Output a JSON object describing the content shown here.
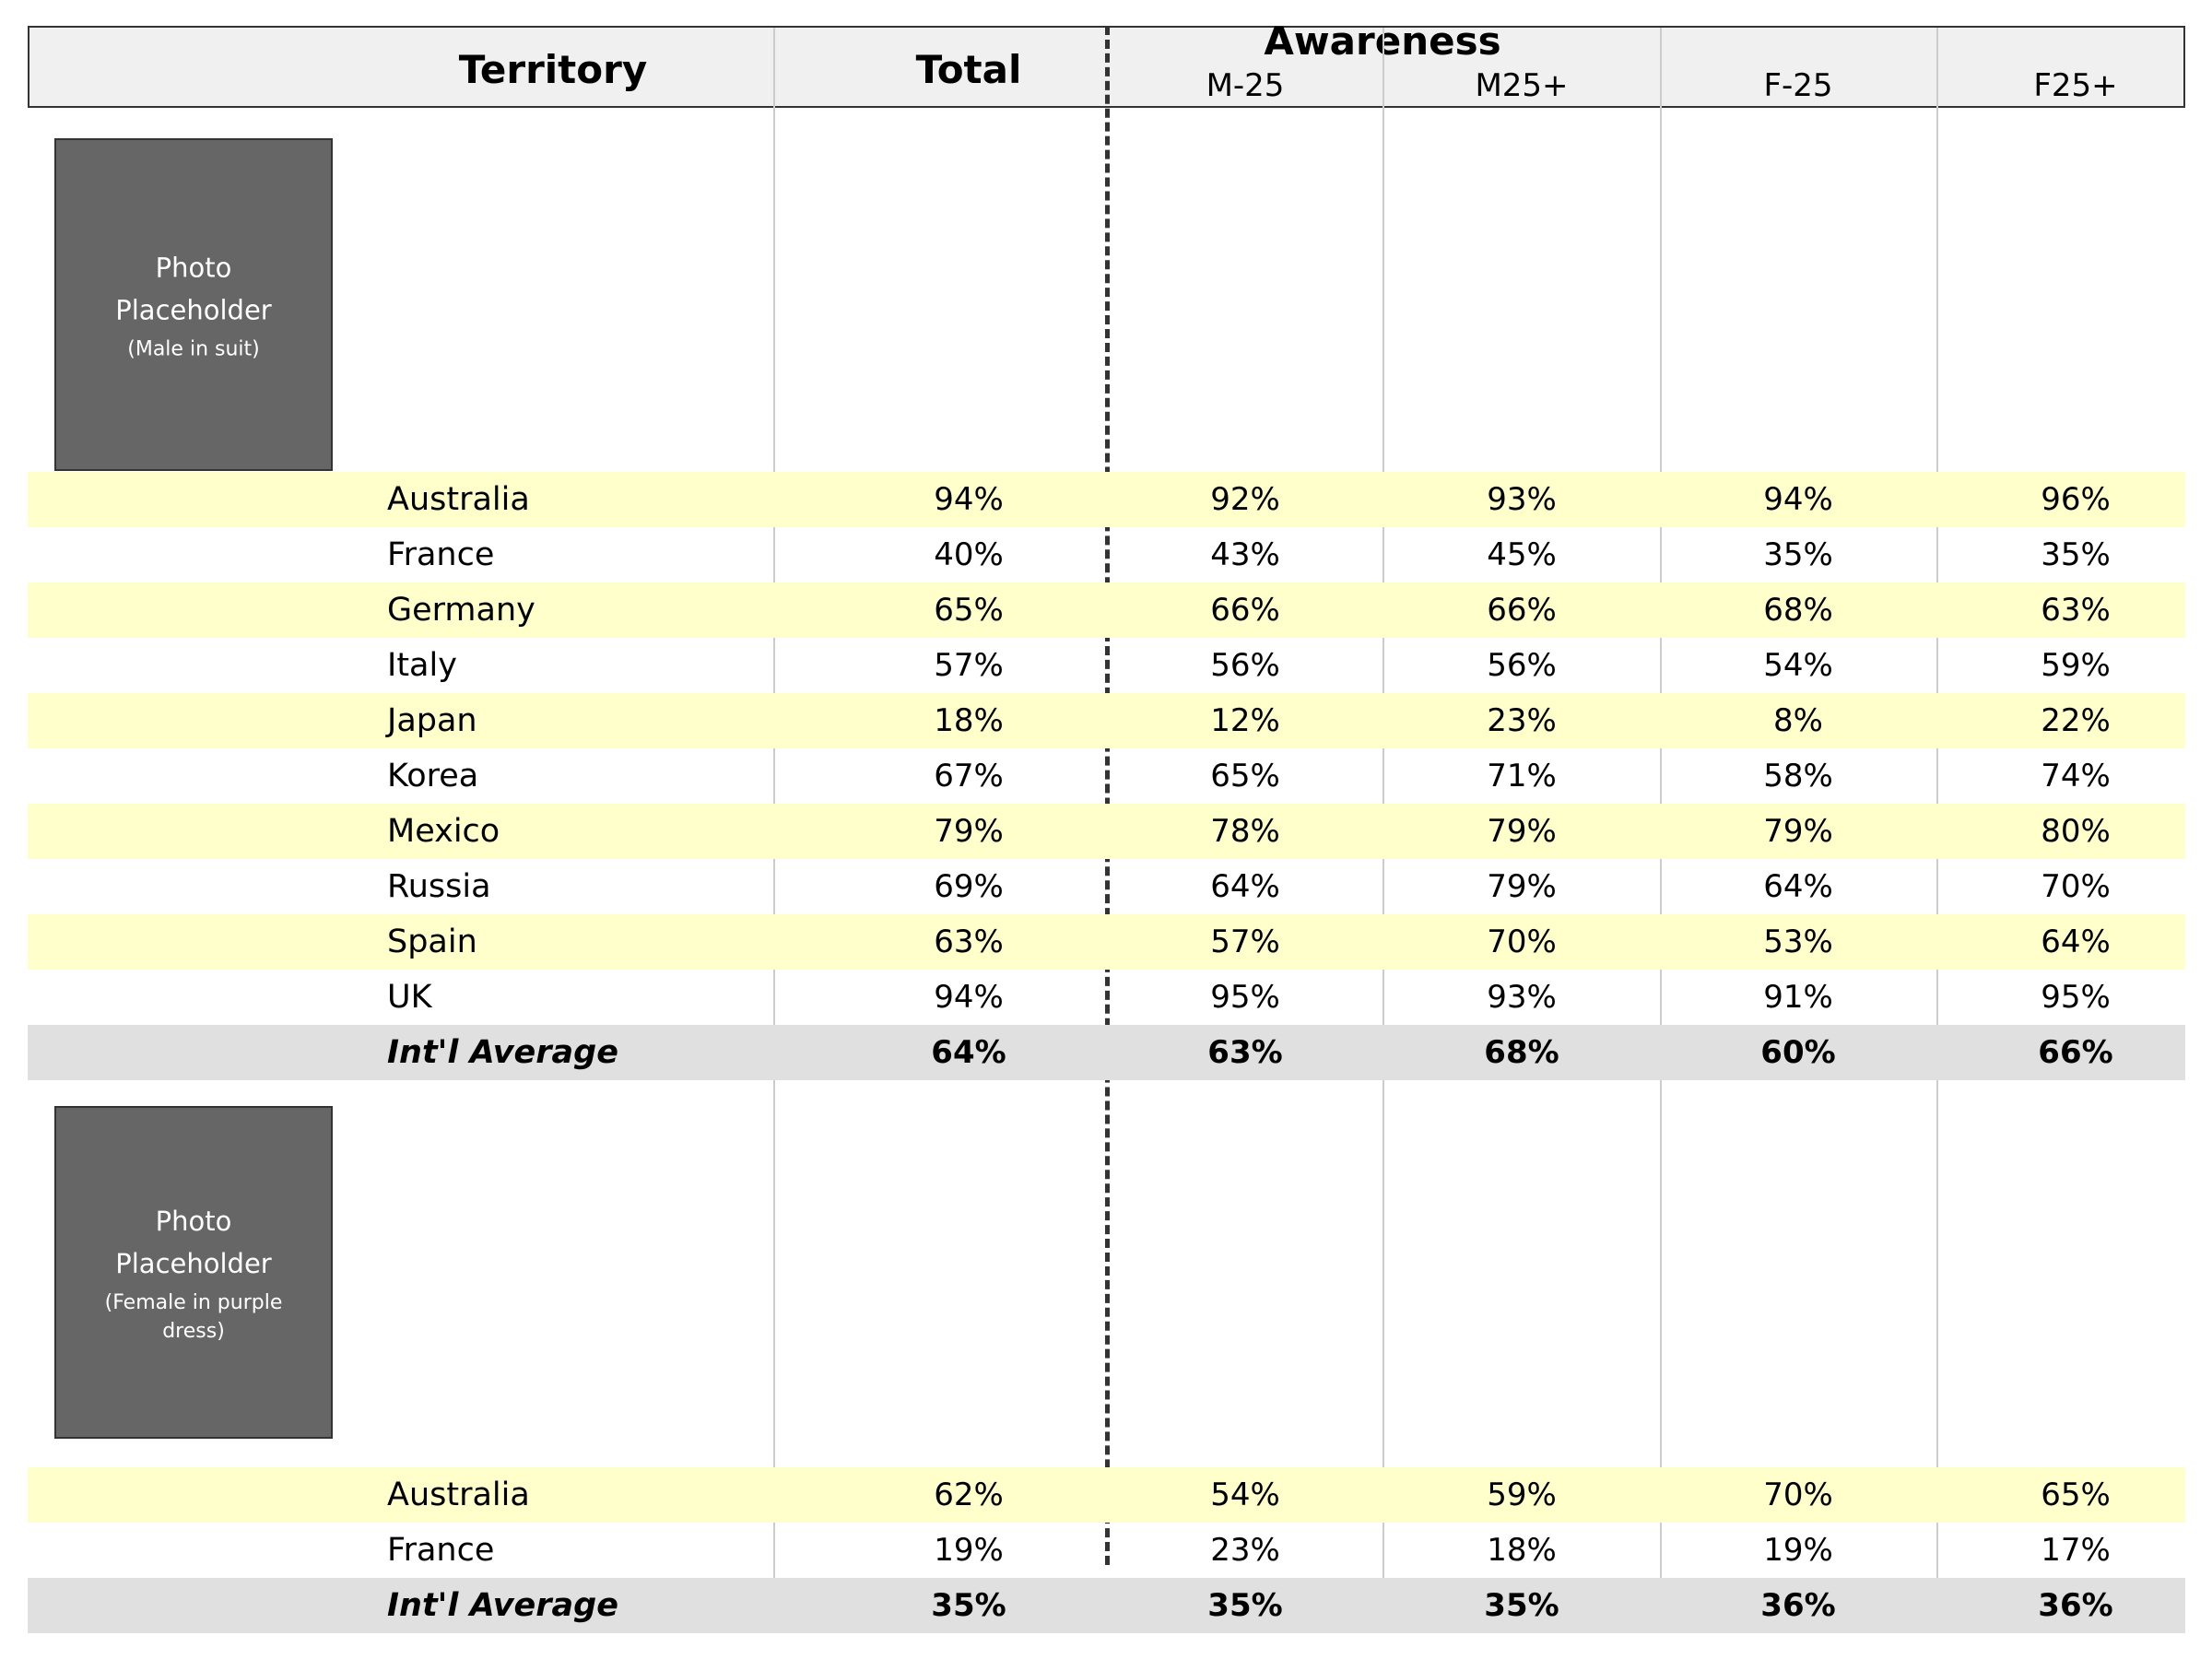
{
  "chart_data": {
    "type": "table",
    "header": {
      "territory_label": "Territory",
      "total_label": "Total",
      "group_label": "Awareness",
      "segments": [
        "M-25",
        "M25+",
        "F-25",
        "F25+"
      ]
    },
    "sections": [
      {
        "photo": {
          "line1": "Photo",
          "line2": "Placeholder",
          "caption": "(Male in suit)"
        },
        "rows": [
          {
            "territory": "Australia",
            "values": [
              "94%",
              "92%",
              "93%",
              "94%",
              "96%"
            ]
          },
          {
            "territory": "France",
            "values": [
              "40%",
              "43%",
              "45%",
              "35%",
              "35%"
            ]
          },
          {
            "territory": "Germany",
            "values": [
              "65%",
              "66%",
              "66%",
              "68%",
              "63%"
            ]
          },
          {
            "territory": "Italy",
            "values": [
              "57%",
              "56%",
              "56%",
              "54%",
              "59%"
            ]
          },
          {
            "territory": "Japan",
            "values": [
              "18%",
              "12%",
              "23%",
              "8%",
              "22%"
            ]
          },
          {
            "territory": "Korea",
            "values": [
              "67%",
              "65%",
              "71%",
              "58%",
              "74%"
            ]
          },
          {
            "territory": "Mexico",
            "values": [
              "79%",
              "78%",
              "79%",
              "79%",
              "80%"
            ]
          },
          {
            "territory": "Russia",
            "values": [
              "69%",
              "64%",
              "79%",
              "64%",
              "70%"
            ]
          },
          {
            "territory": "Spain",
            "values": [
              "63%",
              "57%",
              "70%",
              "53%",
              "64%"
            ]
          },
          {
            "territory": "UK",
            "values": [
              "94%",
              "95%",
              "93%",
              "91%",
              "95%"
            ]
          }
        ],
        "average": {
          "label": "Int'l Average",
          "values": [
            "64%",
            "63%",
            "68%",
            "60%",
            "66%"
          ]
        }
      },
      {
        "photo": {
          "line1": "Photo",
          "line2": "Placeholder",
          "caption": "(Female in purple dress)"
        },
        "rows": [
          {
            "territory": "Australia",
            "values": [
              "62%",
              "54%",
              "59%",
              "70%",
              "65%"
            ]
          },
          {
            "territory": "France",
            "values": [
              "19%",
              "23%",
              "18%",
              "19%",
              "17%"
            ]
          }
        ],
        "average": {
          "label": "Int'l Average",
          "values": [
            "35%",
            "35%",
            "35%",
            "36%",
            "36%"
          ]
        }
      }
    ],
    "colors": {
      "highlight_row": "#ffffcc",
      "average_row": "#e0e0e0",
      "header_bg": "#f0f0f0",
      "photo_bg": "#666666"
    }
  }
}
